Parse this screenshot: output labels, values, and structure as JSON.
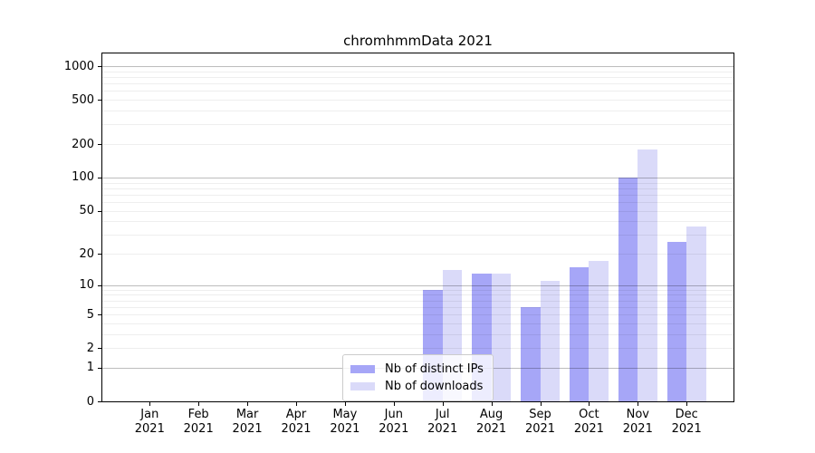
{
  "title": "chromhmmData 2021",
  "chart_data": {
    "type": "bar",
    "title": "chromhmmData 2021",
    "months": [
      "Jan",
      "Feb",
      "Mar",
      "Apr",
      "May",
      "Jun",
      "Jul",
      "Aug",
      "Sep",
      "Oct",
      "Nov",
      "Dec"
    ],
    "year": "2021",
    "categories": [
      "Jan 2021",
      "Feb 2021",
      "Mar 2021",
      "Apr 2021",
      "May 2021",
      "Jun 2021",
      "Jul 2021",
      "Aug 2021",
      "Sep 2021",
      "Oct 2021",
      "Nov 2021",
      "Dec 2021"
    ],
    "series": [
      {
        "name": "Nb of distinct IPs",
        "color": "#a6a6f7",
        "values": [
          0,
          0,
          0,
          0,
          0,
          0,
          9,
          13,
          6,
          15,
          100,
          26
        ]
      },
      {
        "name": "Nb of downloads",
        "color": "#dadaf9",
        "values": [
          0,
          0,
          0,
          0,
          0,
          0,
          14,
          13,
          11,
          17,
          180,
          36
        ]
      }
    ],
    "y_ticks": [
      0,
      1,
      2,
      5,
      10,
      20,
      50,
      100,
      200,
      500,
      1000
    ],
    "yscale": "log1p",
    "ylim": [
      0,
      1000
    ],
    "xlabel": "",
    "ylabel": "",
    "grid": true,
    "legend_position": "lower center"
  }
}
